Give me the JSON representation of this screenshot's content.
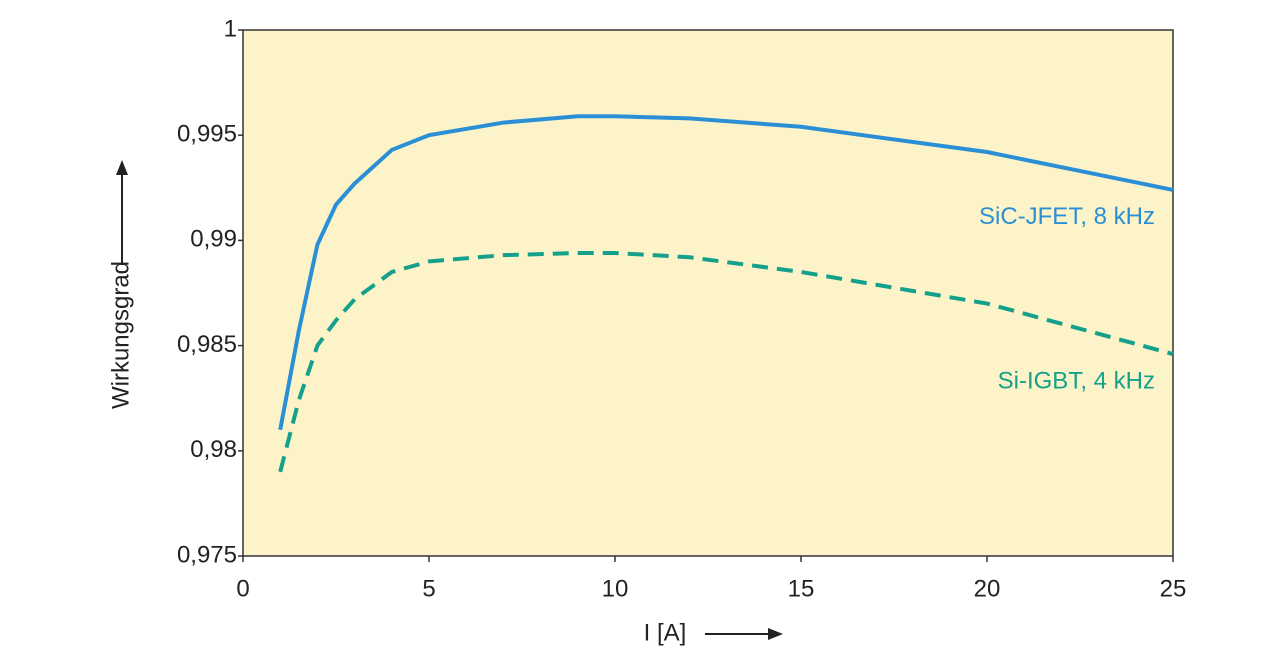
{
  "chart_data": {
    "type": "line",
    "x_label": "I [A]",
    "y_label": "Wirkungsgrad",
    "x": [
      1,
      1.5,
      2,
      2.5,
      3,
      4,
      5,
      7,
      9,
      10,
      12,
      15,
      20,
      25
    ],
    "series": [
      {
        "name": "SiC-JFET, 8 kHz",
        "color": "#2b8fd6",
        "dash": false,
        "values": [
          0.981,
          0.9857,
          0.9898,
          0.9917,
          0.9927,
          0.9943,
          0.995,
          0.9956,
          0.9959,
          0.9959,
          0.9958,
          0.9954,
          0.9942,
          0.9924
        ]
      },
      {
        "name": "Si-IGBT, 4 kHz",
        "color": "#15a08c",
        "dash": true,
        "values": [
          0.979,
          0.9824,
          0.985,
          0.9862,
          0.9872,
          0.9885,
          0.989,
          0.9893,
          0.9894,
          0.9894,
          0.9892,
          0.9885,
          0.987,
          0.9846
        ]
      }
    ],
    "xlim": [
      0,
      25
    ],
    "xticks": [
      0,
      5,
      10,
      15,
      20,
      25
    ],
    "ylim": [
      0.975,
      1
    ],
    "yticks": [
      {
        "value": 0.975,
        "label": "0,975"
      },
      {
        "value": 0.98,
        "label": "0,98"
      },
      {
        "value": 0.985,
        "label": "0,985"
      },
      {
        "value": 0.99,
        "label": "0,99"
      },
      {
        "value": 0.995,
        "label": "0,995"
      },
      1
    ],
    "plot_background": "#fcf4c8"
  }
}
